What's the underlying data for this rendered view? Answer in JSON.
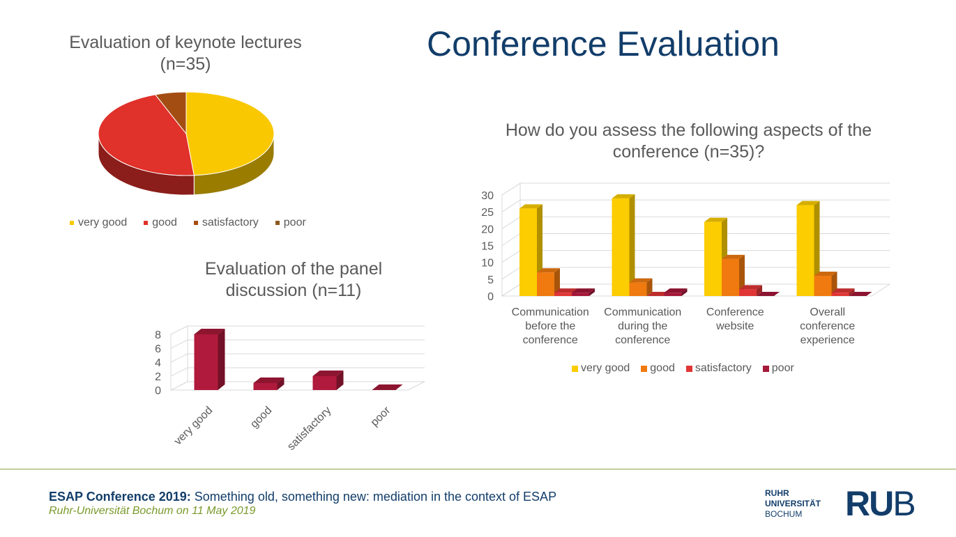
{
  "slide": {
    "title": "Conference Evaluation",
    "footer": {
      "event_bold": "ESAP Conference 2019:",
      "event_rest": " Something old, something new: mediation in the context of ESAP",
      "place_date": "Ruhr-Universität Bochum on 11 May 2019"
    },
    "logo": {
      "line1": "RUHR",
      "line2": "UNIVERSITÄT",
      "line3": "BOCHUM",
      "mark_bold": "RU",
      "mark_light": "B"
    }
  },
  "chart_data": [
    {
      "type": "pie",
      "title": "Evaluation of keynote lectures (n=35)",
      "categories": [
        "very good",
        "good",
        "satisfactory",
        "poor"
      ],
      "values": [
        17,
        16,
        2,
        0
      ],
      "colors": [
        "#f9c800",
        "#e0312a",
        "#a44d12",
        "#8b5a1e"
      ],
      "legend_position": "bottom"
    },
    {
      "type": "bar",
      "title": "Evaluation of the panel discussion (n=11)",
      "categories": [
        "very good",
        "good",
        "satisfactory",
        "poor"
      ],
      "values": [
        8,
        1,
        2,
        0
      ],
      "ylim": [
        0,
        8
      ],
      "yticks": [
        0,
        2,
        4,
        6,
        8
      ],
      "color": "#b01a3c",
      "grid": true
    },
    {
      "type": "bar",
      "title": "How do you assess the following aspects of the conference (n=35)?",
      "categories": [
        "Communication before the conference",
        "Communication during the conference",
        "Conference website",
        "Overall conference experience"
      ],
      "series": [
        {
          "name": "very good",
          "values": [
            26,
            29,
            22,
            27
          ],
          "color": "#fccd00"
        },
        {
          "name": "good",
          "values": [
            7,
            4,
            11,
            6
          ],
          "color": "#f07a10"
        },
        {
          "name": "satisfactory",
          "values": [
            1,
            0,
            2,
            1
          ],
          "color": "#e03535"
        },
        {
          "name": "poor",
          "values": [
            1,
            1,
            0,
            0
          ],
          "color": "#a5183a"
        }
      ],
      "ylim": [
        0,
        30
      ],
      "yticks": [
        0,
        5,
        10,
        15,
        20,
        25,
        30
      ],
      "grid": true,
      "legend_position": "bottom"
    }
  ]
}
